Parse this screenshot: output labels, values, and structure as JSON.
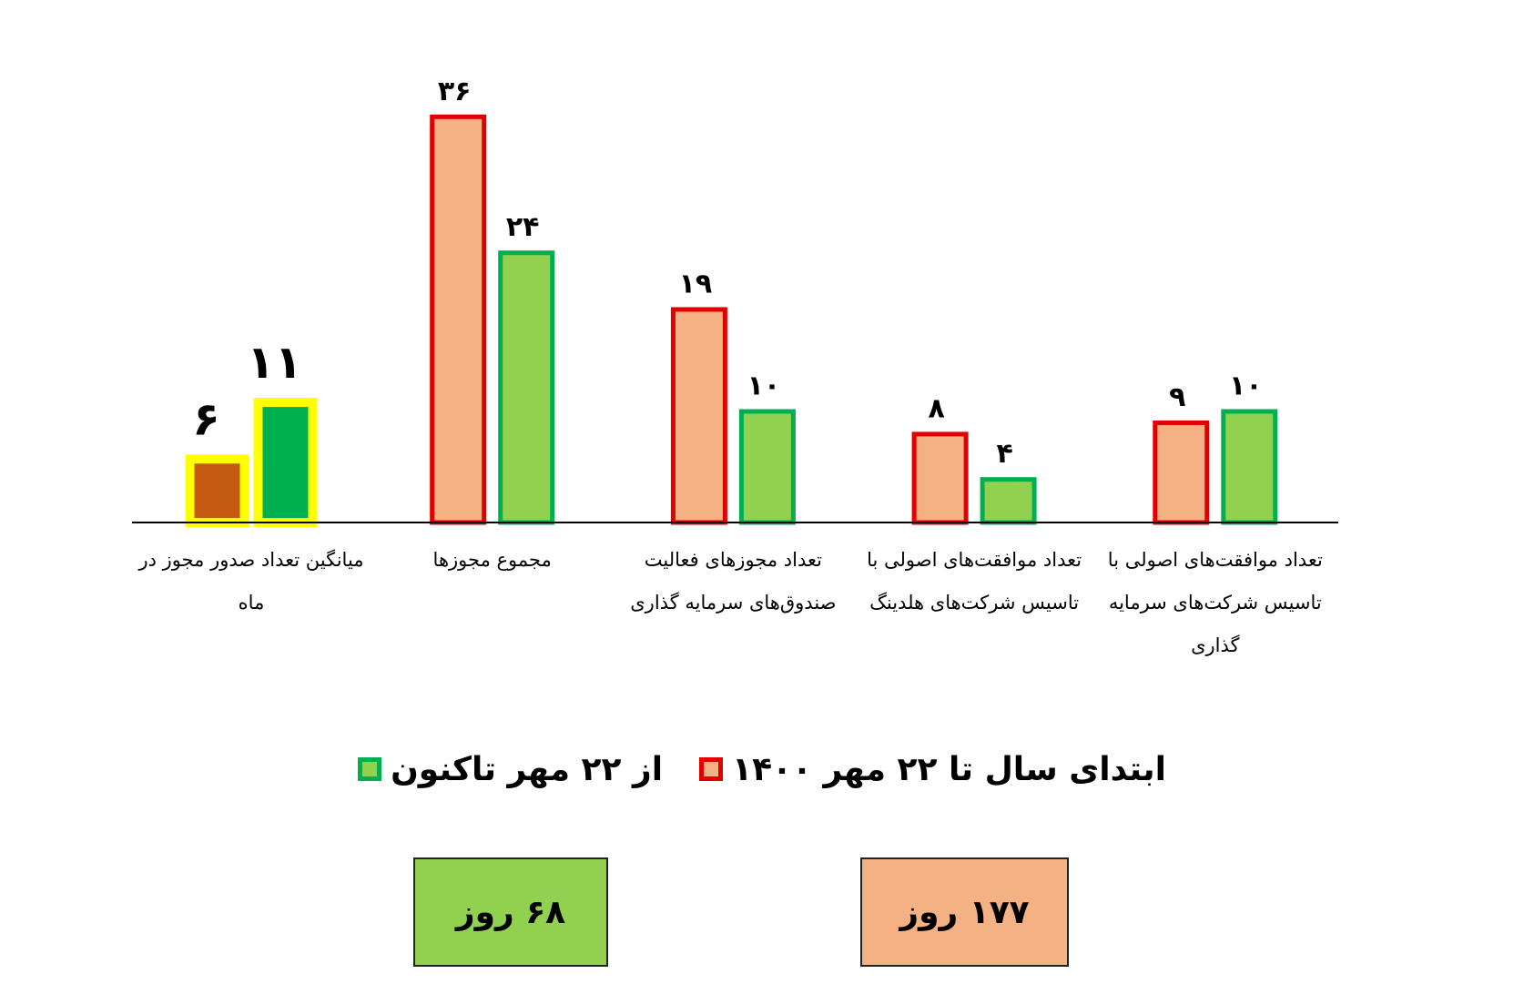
{
  "chart_data": {
    "type": "bar",
    "categories": [
      "میانگین تعداد صدور مجوز در ماه",
      "مجموع مجوزها",
      "تعداد مجوزهای فعالیت صندوق‌های سرمایه گذاری",
      "تعداد موافقت‌های اصولی با تاسیس شرکت‌های هلدینگ",
      "تعداد موافقت‌های اصولی با تاسیس شرکت‌های سرمایه گذاری"
    ],
    "series": [
      {
        "name": "ابتدای سال تا ۲۲ مهر ۱۴۰۰",
        "color": "#f4b183",
        "edgecolor": "#e00000",
        "colors": [
          "#c55a11",
          "#f4b183",
          "#f4b183",
          "#f4b183",
          "#f4b183"
        ],
        "edgecolors": [
          "#ffff00",
          "#e00000",
          "#e00000",
          "#e00000",
          "#e00000"
        ],
        "values": [
          6,
          36,
          19,
          8,
          9
        ],
        "value_labels": [
          "۶",
          "۳۶",
          "۱۹",
          "۸",
          "۹"
        ]
      },
      {
        "name": "از ۲۲ مهر تاکنون",
        "color": "#92d050",
        "edgecolor": "#00b050",
        "colors": [
          "#00b050",
          "#92d050",
          "#92d050",
          "#92d050",
          "#92d050"
        ],
        "edgecolors": [
          "#ffff00",
          "#00b050",
          "#00b050",
          "#00b050",
          "#00b050"
        ],
        "values": [
          11,
          24,
          10,
          4,
          10
        ],
        "value_labels": [
          "۱۱",
          "۲۴",
          "۱۰",
          "۴",
          "۱۰"
        ]
      }
    ],
    "ylim": [
      0,
      40
    ],
    "annotations": [
      {
        "text": "۶۸ روز",
        "color": "#92d050"
      },
      {
        "text": "۱۷۷ روز",
        "color": "#f4b183"
      }
    ]
  }
}
